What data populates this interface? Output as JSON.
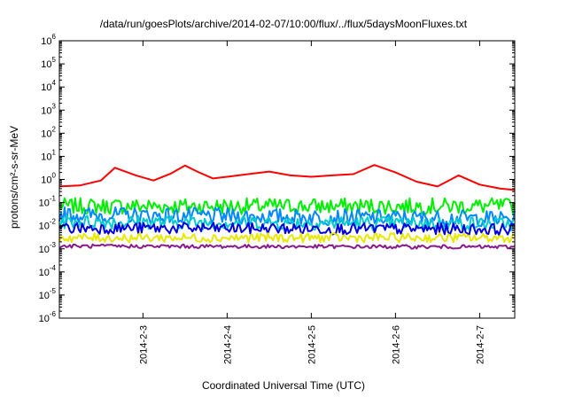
{
  "chart_data": {
    "type": "line",
    "title": "/data/run/goesPlots/archive/2014-02-07/10:00/flux/../flux/5daysMoonFluxes.txt",
    "xlabel": "Coordinated Universal Time (UTC)",
    "ylabel": "protons/cm²-s-sr-MeV",
    "y_scale": "log",
    "ylim_exponents": [
      -6,
      6
    ],
    "xlim": [
      "2014-02-02 00:10",
      "2014-02-07 10:00"
    ],
    "x_ticks": [
      {
        "label": "2014-2-3",
        "date": "2014-02-03"
      },
      {
        "label": "2014-2-4",
        "date": "2014-02-04"
      },
      {
        "label": "2014-2-5",
        "date": "2014-02-05"
      },
      {
        "label": "2014-2-6",
        "date": "2014-02-06"
      },
      {
        "label": "2014-2-7",
        "date": "2014-02-07"
      }
    ],
    "grid": false,
    "legend": "none",
    "series": [
      {
        "color": "#ff0000",
        "x": [
          "2014-02-02 00:10",
          "2014-02-02 06:00",
          "2014-02-02 12:00",
          "2014-02-02 16:00",
          "2014-02-02 22:00",
          "2014-02-03 03:00",
          "2014-02-03 08:00",
          "2014-02-03 12:00",
          "2014-02-03 16:00",
          "2014-02-03 20:00",
          "2014-02-04 00:00",
          "2014-02-04 06:00",
          "2014-02-04 12:00",
          "2014-02-04 18:00",
          "2014-02-05 00:00",
          "2014-02-05 06:00",
          "2014-02-05 12:00",
          "2014-02-05 18:00",
          "2014-02-06 00:00",
          "2014-02-06 06:00",
          "2014-02-06 12:00",
          "2014-02-06 18:00",
          "2014-02-07 00:00",
          "2014-02-07 06:00",
          "2014-02-07 10:00"
        ],
        "y": [
          0.5,
          0.55,
          0.9,
          3.2,
          1.5,
          0.9,
          1.8,
          4.0,
          2.0,
          1.1,
          1.3,
          1.7,
          2.2,
          1.5,
          1.3,
          1.5,
          1.7,
          4.2,
          2.0,
          0.8,
          0.5,
          1.5,
          0.6,
          0.4,
          0.35
        ]
      },
      {
        "color": "#00ee00",
        "x": [
          "2014-02-02 00:10",
          "2014-02-07 10:00"
        ],
        "y": [
          0.07,
          0.07
        ],
        "noise": 0.35
      },
      {
        "color": "#0088ff",
        "x": [
          "2014-02-02 00:10",
          "2014-02-07 10:00"
        ],
        "y": [
          0.03,
          0.02
        ],
        "noise": 0.35
      },
      {
        "color": "#00cccc",
        "x": [
          "2014-02-02 00:10",
          "2014-02-07 10:00"
        ],
        "y": [
          0.015,
          0.012
        ],
        "noise": 0.3
      },
      {
        "color": "#0000dd",
        "x": [
          "2014-02-02 00:10",
          "2014-02-07 10:00"
        ],
        "y": [
          0.008,
          0.007
        ],
        "noise": 0.25
      },
      {
        "color": "#e8e800",
        "x": [
          "2014-02-02 00:10",
          "2014-02-07 10:00"
        ],
        "y": [
          0.003,
          0.003
        ],
        "noise": 0.2
      },
      {
        "color": "#8a1a8a",
        "x": [
          "2014-02-02 00:10",
          "2014-02-07 10:00"
        ],
        "y": [
          0.0013,
          0.0012
        ],
        "noise": 0.08
      }
    ]
  }
}
